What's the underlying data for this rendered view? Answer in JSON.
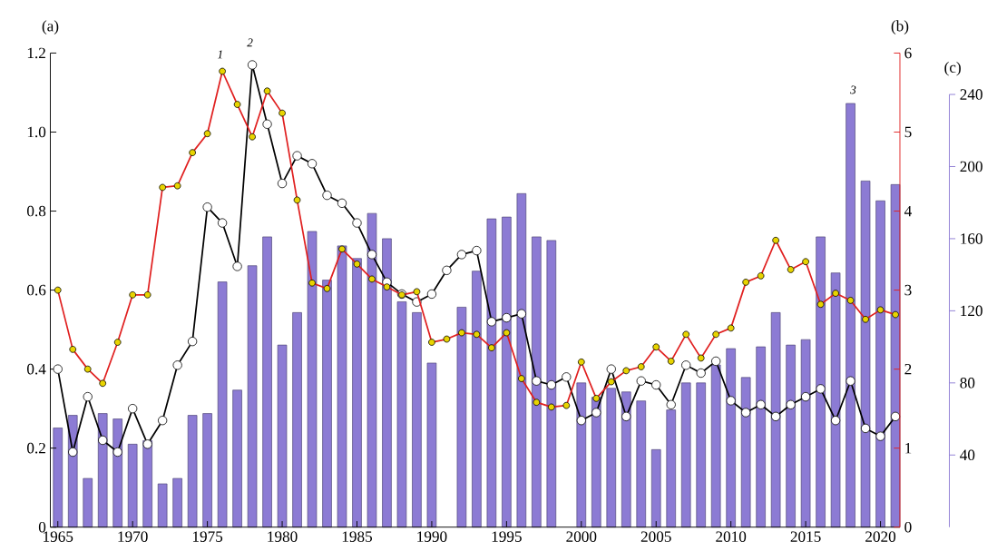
{
  "chart_data": {
    "type": "line",
    "x": [
      1965,
      1966,
      1967,
      1968,
      1969,
      1970,
      1971,
      1972,
      1973,
      1974,
      1975,
      1976,
      1977,
      1978,
      1979,
      1980,
      1981,
      1982,
      1983,
      1984,
      1985,
      1986,
      1987,
      1988,
      1989,
      1990,
      1991,
      1992,
      1993,
      1994,
      1995,
      1996,
      1997,
      1998,
      1999,
      2000,
      2001,
      2002,
      2003,
      2004,
      2005,
      2006,
      2007,
      2008,
      2009,
      2010,
      2011,
      2012,
      2013,
      2014,
      2015,
      2016,
      2017,
      2018,
      2019,
      2020,
      2021
    ],
    "series": [
      {
        "type": "bar",
        "axis": "y3",
        "color": "#8c7bd4",
        "values": [
          55,
          62,
          27,
          63,
          60,
          46,
          48,
          24,
          27,
          62,
          63,
          136,
          76,
          145,
          161,
          101,
          119,
          164,
          137,
          156,
          149,
          174,
          160,
          125,
          119,
          91,
          null,
          122,
          142,
          171,
          172,
          185,
          161,
          159,
          null,
          80,
          72,
          77,
          75,
          70,
          43,
          65,
          80,
          80,
          90,
          99,
          83,
          100,
          119,
          101,
          104,
          161,
          141,
          235,
          192,
          181,
          190
        ]
      },
      {
        "color": "#000000",
        "values": [
          0.4,
          0.19,
          0.33,
          0.22,
          0.19,
          0.3,
          0.21,
          0.27,
          0.41,
          0.47,
          0.81,
          0.77,
          0.66,
          1.17,
          1.02,
          0.87,
          0.94,
          0.92,
          0.84,
          0.82,
          0.77,
          0.69,
          0.62,
          0.59,
          0.57,
          0.59,
          0.65,
          0.69,
          0.7,
          0.52,
          0.53,
          0.54,
          0.37,
          0.36,
          0.38,
          0.27,
          0.29,
          0.4,
          0.28,
          0.37,
          0.36,
          0.31,
          0.41,
          0.39,
          0.42,
          0.32,
          0.29,
          0.31,
          0.28,
          0.31,
          0.33,
          0.35,
          0.27,
          0.37,
          0.25,
          0.23,
          0.28
        ]
      },
      {
        "type": "line",
        "axis": "y2",
        "color": "#e02020",
        "values": [
          3.0,
          2.25,
          2.0,
          1.82,
          2.34,
          2.94,
          2.94,
          4.3,
          4.32,
          4.74,
          4.98,
          5.77,
          5.35,
          4.94,
          5.52,
          5.24,
          4.14,
          3.09,
          3.02,
          3.52,
          3.33,
          3.14,
          3.04,
          2.94,
          2.98,
          2.34,
          2.38,
          2.46,
          2.44,
          2.27,
          2.46,
          1.88,
          1.58,
          1.52,
          1.54,
          2.09,
          1.63,
          1.84,
          1.98,
          2.03,
          2.28,
          2.1,
          2.44,
          2.14,
          2.44,
          2.52,
          3.1,
          3.18,
          3.63,
          3.26,
          3.36,
          2.82,
          2.96,
          2.87,
          2.63,
          2.75,
          2.69
        ]
      }
    ],
    "xlim": [
      1964.5,
      2021.3
    ],
    "xticks": [
      1965,
      1970,
      1975,
      1980,
      1985,
      1990,
      1995,
      2000,
      2005,
      2010,
      2015,
      2020
    ],
    "ylim": [
      0,
      1.2
    ],
    "yticks": [
      0,
      0.2,
      0.4,
      0.6,
      0.8,
      {
        "value": 1,
        "label": "1.0"
      },
      1.2
    ],
    "y2lim": [
      0,
      6
    ],
    "y2ticks": [
      0,
      1,
      2,
      3,
      4,
      5,
      6
    ],
    "y3lim": [
      0,
      240
    ],
    "y3ticks": [
      40,
      80,
      120,
      160,
      200,
      240
    ],
    "ylabel": "(a)",
    "y2label": "(b)",
    "y3label": "(c)",
    "marker": "circle",
    "annotations": [
      "1",
      "2",
      "3"
    ]
  }
}
